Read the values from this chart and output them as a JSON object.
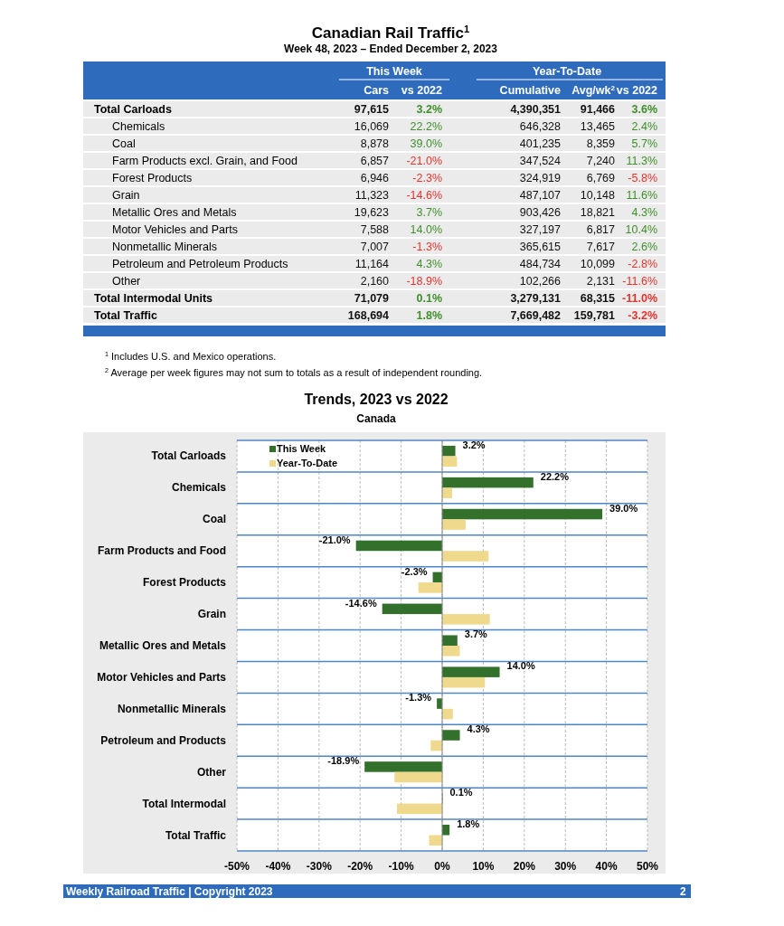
{
  "chart_data": [
    {
      "type": "other",
      "title": "Canadian Rail Traffic$^{1}$",
      "subtitle": "Week 48, 2023 – Ended December 2, 2023",
      "categories": [
        "Total Carloads",
        "Chemicals",
        "Coal",
        "Farm Products excl. Grain, and Food",
        "Forest Products",
        "Grain",
        "Metallic Ores and Metals",
        "Motor Vehicles and Parts",
        "Nonmetallic Minerals",
        "Petroleum and Petroleum Products",
        "Other",
        "Total Intermodal Units",
        "Total Traffic"
      ],
      "series": [
        {
          "name": "Cars",
          "values": [
            97615,
            16069,
            8878,
            6857,
            6946,
            11323,
            19623,
            7588,
            7007,
            11164,
            2160,
            71079,
            168694
          ],
          "value_labels": [
            "97,615",
            "16,069",
            "8,878",
            "6,857",
            "6,946",
            "11,323",
            "19,623",
            "7,588",
            "7,007",
            "11,164",
            "2,160",
            "71,079",
            "168,694"
          ]
        },
        {
          "name": "vs 2022",
          "values": [
            3.2,
            22.2,
            39.0,
            -21.0,
            -2.3,
            -14.6,
            3.7,
            14.0,
            -1.3,
            4.3,
            -18.9,
            0.1,
            1.8
          ],
          "value_labels": [
            "3.2%",
            "22.2%",
            "39.0%",
            "-21.0%",
            "-2.3%",
            "-14.6%",
            "3.7%",
            "14.0%",
            "-1.3%",
            "4.3%",
            "-18.9%",
            "0.1%",
            "1.8%"
          ]
        },
        {
          "name": "Cumulative",
          "values": [
            4390351,
            646328,
            401235,
            347524,
            324919,
            487107,
            903426,
            327197,
            365615,
            484734,
            102266,
            3279131,
            7669482
          ],
          "value_labels": [
            "4,390,351",
            "646,328",
            "401,235",
            "347,524",
            "324,919",
            "487,107",
            "903,426",
            "327,197",
            "365,615",
            "484,734",
            "102,266",
            "3,279,131",
            "7,669,482"
          ]
        },
        {
          "name": "Avg/wk$^{2}$",
          "values": [
            91466,
            13465,
            8359,
            7240,
            6769,
            10148,
            18821,
            6817,
            7617,
            10099,
            2131,
            68315,
            159781
          ],
          "value_labels": [
            "91,466",
            "13,465",
            "8,359",
            "7,240",
            "6,769",
            "10,148",
            "18,821",
            "6,817",
            "7,617",
            "10,099",
            "2,131",
            "68,315",
            "159,781"
          ]
        },
        {
          "name": "vs 2022",
          "values": [
            3.6,
            2.4,
            5.7,
            11.3,
            -5.8,
            11.6,
            4.3,
            10.4,
            2.6,
            -2.8,
            -11.6,
            -11.0,
            -3.2
          ],
          "value_labels": [
            "3.6%",
            "2.4%",
            "5.7%",
            "11.3%",
            "-5.8%",
            "11.6%",
            "4.3%",
            "10.4%",
            "2.6%",
            "-2.8%",
            "-11.6%",
            "-11.0%",
            "-3.2%"
          ]
        }
      ],
      "annotations": [
        "This Week",
        "Year-To-Date",
        "$^{1}$ Includes U.S. and Mexico operations.",
        "$^{2}$ Average per week figures may not sum to totals as a result of independent rounding.",
        "Weekly Railroad Traffic | Copyright 2023",
        "2"
      ]
    },
    {
      "type": "bar",
      "orientation": "horizontal",
      "title": "Trends, 2023 vs 2022",
      "subtitle": "Canada",
      "categories": [
        "Total Carloads",
        "Chemicals",
        "Coal",
        "Farm Products and Food",
        "Forest Products",
        "Grain",
        "Metallic Ores and Metals",
        "Motor Vehicles and Parts",
        "Nonmetallic Minerals",
        "Petroleum and Products",
        "Other",
        "Total Intermodal",
        "Total Traffic"
      ],
      "series": [
        {
          "name": "This Week",
          "color": "#33702b",
          "values": [
            3.2,
            22.2,
            39.0,
            -21.0,
            -2.3,
            -14.6,
            3.7,
            14.0,
            -1.3,
            4.3,
            -18.9,
            0.1,
            1.8
          ],
          "value_labels": [
            "3.2%",
            "22.2%",
            "39.0%",
            "-21.0%",
            "-2.3%",
            "-14.6%",
            "3.7%",
            "14.0%",
            "-1.3%",
            "4.3%",
            "-18.9%",
            "0.1%",
            "1.8%"
          ]
        },
        {
          "name": "Year-To-Date",
          "color": "#eed98c",
          "values": [
            3.6,
            2.4,
            5.7,
            11.3,
            -5.8,
            11.6,
            4.3,
            10.4,
            2.6,
            -2.8,
            -11.6,
            -11.0,
            -3.2
          ]
        }
      ],
      "xlim": [
        -50,
        50
      ],
      "xticks": [
        {
          "value": -50,
          "label": "-50%"
        },
        {
          "value": -40,
          "label": "-40%"
        },
        {
          "value": -30,
          "label": "-30%"
        },
        {
          "value": -20,
          "label": "-20%"
        },
        {
          "value": -10,
          "label": "-10%"
        },
        {
          "value": 0,
          "label": "0%"
        },
        {
          "value": 10,
          "label": "10%"
        },
        {
          "value": 20,
          "label": "20%"
        },
        {
          "value": 30,
          "label": "30%"
        },
        {
          "value": 40,
          "label": "40%"
        },
        {
          "value": 50,
          "label": "50%"
        }
      ],
      "grid": "x",
      "legend": "top left"
    }
  ]
}
